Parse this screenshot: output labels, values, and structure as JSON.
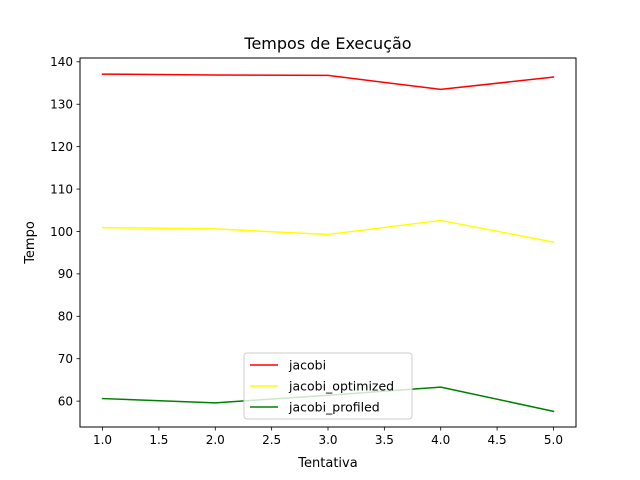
{
  "chart_data": {
    "type": "line",
    "title": "Tempos de Execução",
    "xlabel": "Tentativa",
    "ylabel": "Tempo",
    "x": [
      1.0,
      2.0,
      3.0,
      4.0,
      5.0
    ],
    "xlim": [
      0.8,
      5.2
    ],
    "ylim": [
      53.9,
      140.9
    ],
    "xticks": [
      1.0,
      1.5,
      2.0,
      2.5,
      3.0,
      3.5,
      4.0,
      4.5,
      5.0
    ],
    "xtick_labels": [
      "1.0",
      "1.5",
      "2.0",
      "2.5",
      "3.0",
      "3.5",
      "4.0",
      "4.5",
      "5.0"
    ],
    "yticks": [
      60,
      70,
      80,
      90,
      100,
      110,
      120,
      130,
      140
    ],
    "ytick_labels": [
      "60",
      "70",
      "80",
      "90",
      "100",
      "110",
      "120",
      "130",
      "140"
    ],
    "grid": false,
    "legend_position": "bottom-center",
    "series": [
      {
        "name": "jacobi",
        "color": "#ff0000",
        "values": [
          137.1,
          136.9,
          136.8,
          133.5,
          136.4
        ]
      },
      {
        "name": "jacobi_optimized",
        "color": "#ffff00",
        "values": [
          100.9,
          100.6,
          99.3,
          102.6,
          97.5
        ]
      },
      {
        "name": "jacobi_profiled",
        "color": "#008000",
        "values": [
          60.6,
          59.6,
          61.4,
          63.3,
          57.6
        ]
      }
    ]
  }
}
